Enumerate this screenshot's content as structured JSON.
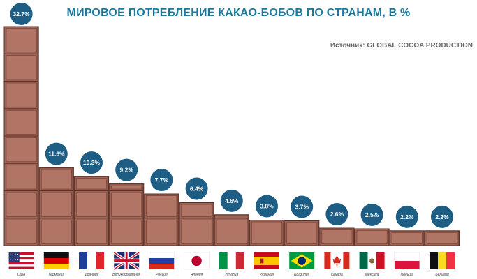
{
  "title": "МИРОВОЕ ПОТРЕБЛЕНИЕ КАКАО-БОБОВ ПО СТРАНАМ, В %",
  "source": "Источник: GLOBAL COCOA PRODUCTION",
  "colors": {
    "title": "#1b7a9e",
    "bubble": "#1f5e84",
    "chocolate_face": "#a06455",
    "chocolate_inner": "#b07565",
    "chocolate_edge": "#5a3128"
  },
  "chart_data": {
    "type": "bar",
    "title": "МИРОВОЕ ПОТРЕБЛЕНИЕ КАКАО-БОБОВ ПО СТРАНАМ, В %",
    "source": "Источник: GLOBAL COCOA PRODUCTION",
    "categories": [
      "США",
      "Германия",
      "Франция",
      "Великобритания",
      "Россия",
      "Япония",
      "Италия",
      "Испания",
      "Бразилия",
      "Канада",
      "Мексика",
      "Польша",
      "Бельгия"
    ],
    "values": [
      32.7,
      11.6,
      10.3,
      9.2,
      7.7,
      6.4,
      4.6,
      3.8,
      3.7,
      2.6,
      2.5,
      2.2,
      2.2
    ],
    "labels": [
      "32.7%",
      "11.6%",
      "10.3%",
      "9.2%",
      "7.7%",
      "6.4%",
      "4.6%",
      "3.8%",
      "3.7%",
      "2.6%",
      "2.5%",
      "2.2%",
      "2.2%"
    ],
    "flags": [
      "usa-flag",
      "germany-flag",
      "france-flag",
      "uk-flag",
      "russia-flag",
      "japan-flag",
      "italy-flag",
      "spain-flag",
      "brazil-flag",
      "canada-flag",
      "mexico-flag",
      "poland-flag",
      "belgium-flag"
    ],
    "ylim": [
      0,
      32.7
    ],
    "grid": false,
    "legend": "none"
  }
}
